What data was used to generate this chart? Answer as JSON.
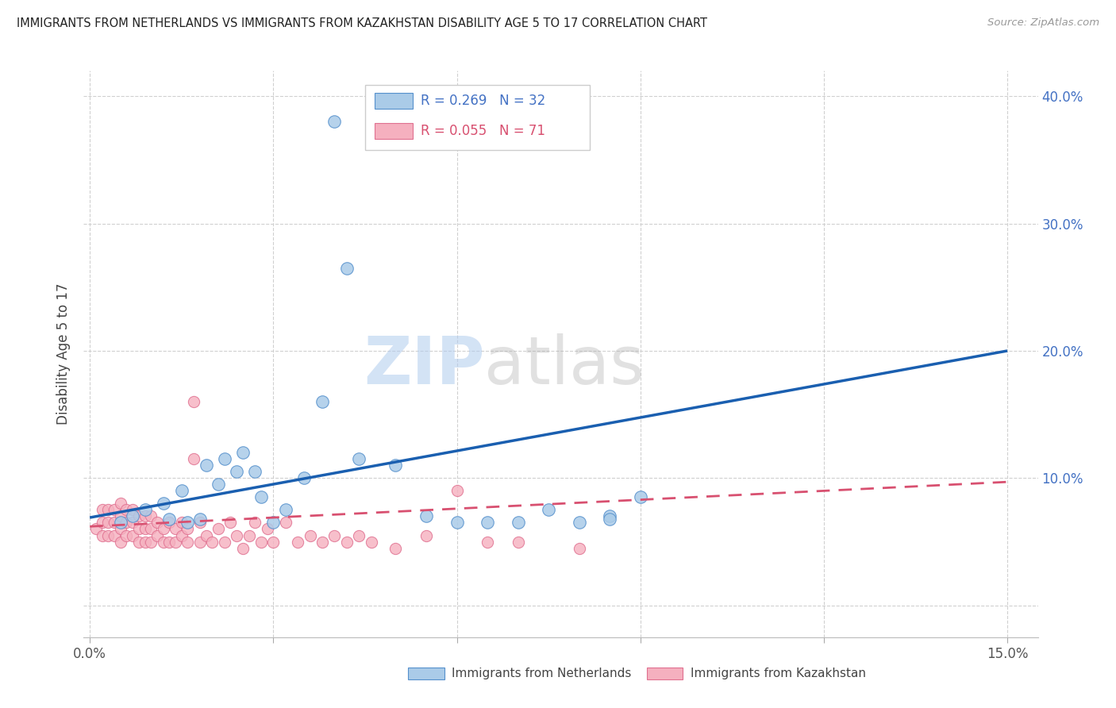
{
  "title": "IMMIGRANTS FROM NETHERLANDS VS IMMIGRANTS FROM KAZAKHSTAN DISABILITY AGE 5 TO 17 CORRELATION CHART",
  "source": "Source: ZipAtlas.com",
  "ylabel": "Disability Age 5 to 17",
  "xlim": [
    -0.001,
    0.155
  ],
  "ylim": [
    -0.025,
    0.42
  ],
  "ytick_vals": [
    0.0,
    0.1,
    0.2,
    0.3,
    0.4
  ],
  "right_yticklabels": [
    "",
    "10.0%",
    "20.0%",
    "30.0%",
    "40.0%"
  ],
  "xtick_vals": [
    0.0,
    0.03,
    0.06,
    0.09,
    0.12,
    0.15
  ],
  "xticklabels": [
    "0.0%",
    "",
    "",
    "",
    "",
    "15.0%"
  ],
  "watermark_zip": "ZIP",
  "watermark_atlas": "atlas",
  "netherlands_R": "0.269",
  "netherlands_N": "32",
  "kazakhstan_R": "0.055",
  "kazakhstan_N": "71",
  "netherlands_scatter_color": "#aacbe8",
  "netherlands_edge_color": "#5590cc",
  "kazakhstan_scatter_color": "#f5b0bf",
  "kazakhstan_edge_color": "#e07090",
  "netherlands_line_color": "#1a5fb0",
  "kazakhstan_line_color": "#d85070",
  "background_color": "#ffffff",
  "grid_color": "#d0d0d0",
  "nl_line_x0": 0.0,
  "nl_line_y0": 0.069,
  "nl_line_x1": 0.15,
  "nl_line_y1": 0.2,
  "kz_line_x0": 0.0,
  "kz_line_y0": 0.062,
  "kz_line_x1": 0.15,
  "kz_line_y1": 0.097,
  "netherlands_x": [
    0.005,
    0.007,
    0.009,
    0.012,
    0.013,
    0.015,
    0.016,
    0.018,
    0.019,
    0.021,
    0.022,
    0.024,
    0.025,
    0.027,
    0.028,
    0.03,
    0.032,
    0.035,
    0.038,
    0.04,
    0.042,
    0.044,
    0.05,
    0.055,
    0.06,
    0.065,
    0.07,
    0.075,
    0.08,
    0.085,
    0.09,
    0.085
  ],
  "netherlands_y": [
    0.065,
    0.07,
    0.075,
    0.08,
    0.068,
    0.09,
    0.065,
    0.068,
    0.11,
    0.095,
    0.115,
    0.105,
    0.12,
    0.105,
    0.085,
    0.065,
    0.075,
    0.1,
    0.16,
    0.38,
    0.265,
    0.115,
    0.11,
    0.07,
    0.065,
    0.065,
    0.065,
    0.075,
    0.065,
    0.07,
    0.085,
    0.068
  ],
  "kazakhstan_x": [
    0.001,
    0.002,
    0.002,
    0.002,
    0.003,
    0.003,
    0.003,
    0.004,
    0.004,
    0.004,
    0.005,
    0.005,
    0.005,
    0.005,
    0.006,
    0.006,
    0.006,
    0.007,
    0.007,
    0.007,
    0.008,
    0.008,
    0.008,
    0.009,
    0.009,
    0.009,
    0.01,
    0.01,
    0.01,
    0.011,
    0.011,
    0.012,
    0.012,
    0.013,
    0.013,
    0.014,
    0.014,
    0.015,
    0.015,
    0.016,
    0.016,
    0.017,
    0.017,
    0.018,
    0.018,
    0.019,
    0.02,
    0.021,
    0.022,
    0.023,
    0.024,
    0.025,
    0.026,
    0.027,
    0.028,
    0.029,
    0.03,
    0.032,
    0.034,
    0.036,
    0.038,
    0.04,
    0.042,
    0.044,
    0.046,
    0.05,
    0.055,
    0.06,
    0.065,
    0.07,
    0.08
  ],
  "kazakhstan_y": [
    0.06,
    0.055,
    0.065,
    0.075,
    0.055,
    0.065,
    0.075,
    0.055,
    0.065,
    0.075,
    0.05,
    0.06,
    0.07,
    0.08,
    0.055,
    0.065,
    0.075,
    0.055,
    0.065,
    0.075,
    0.05,
    0.06,
    0.07,
    0.05,
    0.06,
    0.07,
    0.05,
    0.06,
    0.07,
    0.055,
    0.065,
    0.05,
    0.06,
    0.05,
    0.065,
    0.05,
    0.06,
    0.055,
    0.065,
    0.05,
    0.06,
    0.115,
    0.16,
    0.05,
    0.065,
    0.055,
    0.05,
    0.06,
    0.05,
    0.065,
    0.055,
    0.045,
    0.055,
    0.065,
    0.05,
    0.06,
    0.05,
    0.065,
    0.05,
    0.055,
    0.05,
    0.055,
    0.05,
    0.055,
    0.05,
    0.045,
    0.055,
    0.09,
    0.05,
    0.05,
    0.045
  ]
}
